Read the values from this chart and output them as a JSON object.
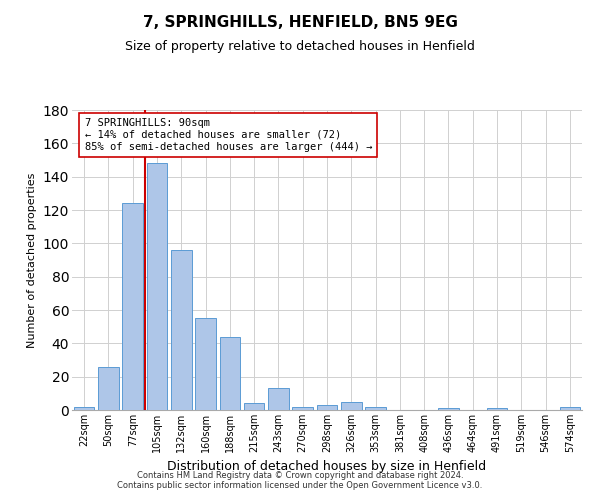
{
  "title": "7, SPRINGHILLS, HENFIELD, BN5 9EG",
  "subtitle": "Size of property relative to detached houses in Henfield",
  "xlabel": "Distribution of detached houses by size in Henfield",
  "ylabel": "Number of detached properties",
  "bar_labels": [
    "22sqm",
    "50sqm",
    "77sqm",
    "105sqm",
    "132sqm",
    "160sqm",
    "188sqm",
    "215sqm",
    "243sqm",
    "270sqm",
    "298sqm",
    "326sqm",
    "353sqm",
    "381sqm",
    "408sqm",
    "436sqm",
    "464sqm",
    "491sqm",
    "519sqm",
    "546sqm",
    "574sqm"
  ],
  "bar_values": [
    2,
    26,
    124,
    148,
    96,
    55,
    44,
    4,
    13,
    2,
    3,
    5,
    2,
    0,
    0,
    1,
    0,
    1,
    0,
    0,
    2
  ],
  "bar_color": "#aec6e8",
  "bar_edge_color": "#5b9bd5",
  "vline_x_idx": 2.5,
  "vline_color": "#cc0000",
  "annotation_text": "7 SPRINGHILLS: 90sqm\n← 14% of detached houses are smaller (72)\n85% of semi-detached houses are larger (444) →",
  "annotation_box_color": "#ffffff",
  "annotation_box_edge": "#cc0000",
  "ylim": [
    0,
    180
  ],
  "yticks": [
    0,
    20,
    40,
    60,
    80,
    100,
    120,
    140,
    160,
    180
  ],
  "footer": "Contains HM Land Registry data © Crown copyright and database right 2024.\nContains public sector information licensed under the Open Government Licence v3.0.",
  "background_color": "#ffffff",
  "grid_color": "#d0d0d0",
  "title_fontsize": 11,
  "subtitle_fontsize": 9,
  "ylabel_fontsize": 8,
  "xlabel_fontsize": 9
}
